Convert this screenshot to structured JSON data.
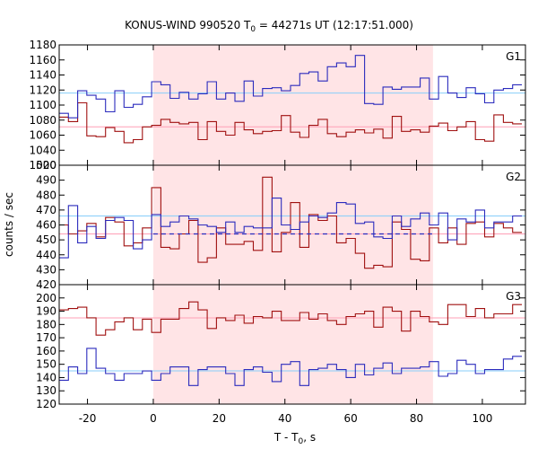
{
  "chart_data": {
    "type": "line",
    "title": "KONUS-WIND 990520 T",
    "title_sub": "0",
    "title_rest": " = 44271s UT (12:17:51.000)",
    "xlabel": "T - T",
    "xlabel_sub": "0",
    "xlabel_rest": ", s",
    "ylabel": "counts / sec",
    "xlim": [
      -28.6,
      113.1
    ],
    "x_ticks": [
      -20,
      0,
      20,
      40,
      60,
      80,
      100
    ],
    "shaded_interval": [
      0.0,
      85.0
    ],
    "colors": {
      "shade": "#ffe4e6",
      "blue_series": "#2b2bbd",
      "red_series": "#a01010",
      "blue_background": "#87cefa",
      "red_background": "#ff9fb6",
      "frame": "#000000"
    },
    "bin_edges": [
      -28.6,
      -25.8,
      -23.0,
      -20.2,
      -17.4,
      -14.5,
      -11.7,
      -8.9,
      -6.1,
      -3.3,
      -0.5,
      2.3,
      5.1,
      7.9,
      10.8,
      13.6,
      16.4,
      19.2,
      22.0,
      24.8,
      27.6,
      30.4,
      33.2,
      36.1,
      38.9,
      41.7,
      44.5,
      47.3,
      50.1,
      52.9,
      55.7,
      58.6,
      61.4,
      64.2,
      67.0,
      69.8,
      72.6,
      75.4,
      78.2,
      81.1,
      83.9,
      86.7,
      89.5,
      92.3,
      95.1,
      97.9,
      100.7,
      103.5,
      106.4,
      109.2,
      112.0
    ],
    "panels": [
      {
        "label": "G1",
        "ylim": [
          1020,
          1180
        ],
        "y_ticks": [
          1020,
          1040,
          1060,
          1080,
          1100,
          1120,
          1140,
          1160,
          1180
        ],
        "background_blue": 1116,
        "background_red": 1071,
        "series_blue": [
          1089,
          1083,
          1119,
          1113,
          1108,
          1091,
          1119,
          1097,
          1101,
          1111,
          1131,
          1127,
          1109,
          1117,
          1108,
          1115,
          1131,
          1108,
          1116,
          1105,
          1132,
          1112,
          1122,
          1123,
          1119,
          1126,
          1142,
          1144,
          1132,
          1151,
          1156,
          1151,
          1166,
          1102,
          1101,
          1124,
          1121,
          1124,
          1124,
          1136,
          1108,
          1138,
          1116,
          1110,
          1123,
          1115,
          1103,
          1120,
          1122,
          1127
        ],
        "series_red": [
          1084,
          1078,
          1103,
          1059,
          1058,
          1070,
          1065,
          1050,
          1054,
          1071,
          1073,
          1081,
          1077,
          1075,
          1077,
          1054,
          1078,
          1065,
          1060,
          1077,
          1067,
          1062,
          1065,
          1066,
          1086,
          1064,
          1057,
          1073,
          1081,
          1062,
          1058,
          1064,
          1067,
          1063,
          1068,
          1056,
          1085,
          1065,
          1067,
          1064,
          1072,
          1076,
          1066,
          1071,
          1078,
          1054,
          1052,
          1087,
          1077,
          1075
        ]
      },
      {
        "label": "G2",
        "ylim": [
          420,
          500
        ],
        "y_ticks": [
          420,
          430,
          440,
          450,
          460,
          470,
          480,
          490,
          500
        ],
        "background_blue": 466,
        "background_red": 454,
        "mean_line": 454,
        "series_blue": [
          438,
          473,
          448,
          459,
          451,
          463,
          465,
          463,
          444,
          450,
          467,
          459,
          462,
          466,
          464,
          460,
          459,
          455,
          462,
          455,
          459,
          458,
          458,
          478,
          460,
          457,
          462,
          466,
          465,
          468,
          475,
          474,
          461,
          462,
          452,
          451,
          466,
          459,
          464,
          468,
          460,
          468,
          450,
          464,
          462,
          470,
          458,
          462,
          462,
          466
        ],
        "series_red": [
          460,
          454,
          456,
          461,
          452,
          465,
          462,
          446,
          448,
          458,
          485,
          445,
          444,
          454,
          463,
          435,
          438,
          458,
          447,
          447,
          449,
          443,
          492,
          442,
          455,
          475,
          445,
          467,
          463,
          466,
          448,
          451,
          441,
          431,
          433,
          432,
          462,
          457,
          437,
          436,
          458,
          448,
          458,
          447,
          461,
          462,
          452,
          461,
          458,
          455
        ]
      },
      {
        "label": "G3",
        "ylim": [
          120,
          210
        ],
        "y_ticks": [
          120,
          130,
          140,
          150,
          160,
          170,
          180,
          190,
          200
        ],
        "background_blue": 145,
        "background_red": 185,
        "series_blue": [
          138,
          148,
          143,
          162,
          147,
          143,
          138,
          143,
          143,
          145,
          138,
          143,
          148,
          148,
          134,
          146,
          148,
          148,
          143,
          134,
          146,
          148,
          144,
          137,
          150,
          152,
          134,
          146,
          147,
          150,
          146,
          140,
          150,
          142,
          147,
          151,
          143,
          147,
          147,
          148,
          152,
          141,
          143,
          153,
          150,
          143,
          146,
          146,
          154,
          156
        ],
        "series_red": [
          191,
          192,
          193,
          185,
          172,
          176,
          182,
          185,
          176,
          184,
          174,
          184,
          184,
          192,
          197,
          191,
          177,
          185,
          183,
          187,
          181,
          186,
          185,
          190,
          183,
          183,
          189,
          184,
          188,
          183,
          180,
          186,
          188,
          190,
          178,
          193,
          190,
          175,
          190,
          186,
          182,
          180,
          195,
          195,
          186,
          192,
          185,
          188,
          188,
          195
        ]
      }
    ]
  }
}
